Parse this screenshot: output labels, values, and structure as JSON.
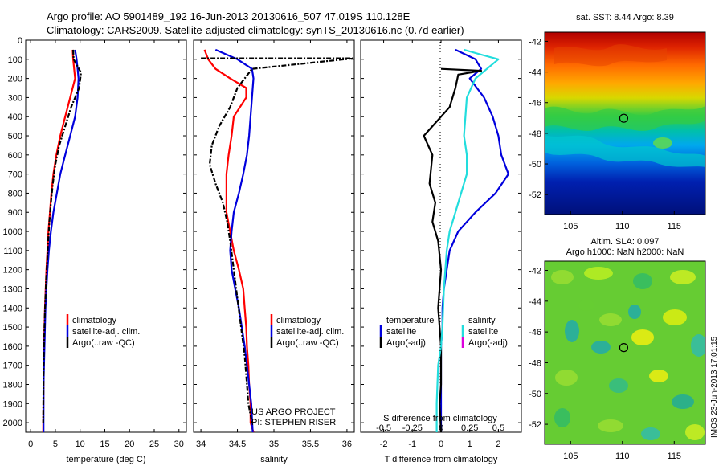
{
  "header": {
    "line1": "Argo profile: AO 5901489_192 16-Jun-2013 20130616_507 47.019S 110.128E",
    "line2": "Climatology: CARS2009. Satellite-adjusted climatology: synTS_20130616.nc (0.7d earlier)"
  },
  "colors": {
    "climatology": "#ff0000",
    "satellite": "#0000dd",
    "argo": "#000000",
    "satellite_s": "#22dddd",
    "argo_adj_s": "#dd00dd"
  },
  "chart_data": [
    {
      "id": "temperature",
      "type": "line",
      "xlabel": "temperature (deg C)",
      "ylabel": "",
      "xlim": [
        -1,
        31.5
      ],
      "ylim": [
        2050,
        0
      ],
      "xticks": [
        "0",
        "5",
        "10",
        "15",
        "20",
        "25",
        "30"
      ],
      "xtick_values": [
        0,
        5,
        10,
        15,
        20,
        25,
        30
      ],
      "yticks": [
        "0",
        "100",
        "200",
        "300",
        "400",
        "500",
        "600",
        "700",
        "800",
        "900",
        "1000",
        "1100",
        "1200",
        "1300",
        "1400",
        "1500",
        "1600",
        "1700",
        "1800",
        "1900",
        "2000"
      ],
      "ytick_values": [
        0,
        100,
        200,
        300,
        400,
        500,
        600,
        700,
        800,
        900,
        1000,
        1100,
        1200,
        1300,
        1400,
        1500,
        1600,
        1700,
        1800,
        1900,
        2000
      ],
      "legend": [
        "climatology",
        "satellite-adj. clim.",
        "Argo(..raw -QC)"
      ],
      "series": [
        {
          "name": "climatology",
          "color_key": "climatology",
          "x": [
            8.5,
            8.6,
            8.8,
            9.0,
            8.0,
            7.0,
            6.0,
            5.2,
            4.6,
            4.2,
            3.9,
            3.6,
            3.4,
            3.2,
            3.05,
            2.9,
            2.8,
            2.7,
            2.65,
            2.6,
            2.55
          ],
          "y": [
            50,
            100,
            150,
            200,
            300,
            400,
            500,
            600,
            700,
            800,
            900,
            1000,
            1100,
            1200,
            1300,
            1400,
            1500,
            1600,
            1700,
            1800,
            2050
          ]
        },
        {
          "name": "satellite-adj. clim.",
          "color_key": "satellite",
          "x": [
            9.0,
            9.3,
            9.5,
            9.7,
            9.5,
            9.0,
            8.0,
            7.0,
            6.0,
            5.3,
            4.6,
            4.1,
            3.7,
            3.4,
            3.2,
            3.0,
            2.9,
            2.8,
            2.7,
            2.6,
            2.6
          ],
          "y": [
            50,
            100,
            150,
            200,
            300,
            400,
            500,
            600,
            700,
            800,
            900,
            1000,
            1100,
            1200,
            1300,
            1400,
            1500,
            1600,
            1700,
            1800,
            2050
          ]
        },
        {
          "name": "Argo(..raw -QC)",
          "color_key": "argo",
          "x": [
            8.6,
            8.7,
            10.2,
            9.8,
            8.2,
            7.0,
            5.8,
            5.0,
            4.5,
            4.1,
            3.8,
            3.55,
            3.35,
            3.15,
            3.0,
            2.85,
            2.75,
            2.65,
            2.6,
            2.55
          ],
          "y": [
            50,
            100,
            170,
            250,
            350,
            450,
            550,
            650,
            750,
            850,
            950,
            1050,
            1150,
            1250,
            1350,
            1450,
            1550,
            1650,
            1750,
            2000
          ]
        }
      ]
    },
    {
      "id": "salinity",
      "type": "line",
      "xlabel": "salinity",
      "xlim": [
        33.9,
        36.1
      ],
      "ylim": [
        2050,
        0
      ],
      "xticks": [
        "34",
        "34.5",
        "35",
        "35.5",
        "36"
      ],
      "xtick_values": [
        34,
        34.5,
        35,
        35.5,
        36
      ],
      "legend": [
        "climatology",
        "satellite-adj. clim.",
        "Argo(..raw -QC)"
      ],
      "annotations": [
        "US ARGO PROJECT",
        "PI: STEPHEN RISER"
      ],
      "series": [
        {
          "name": "climatology",
          "color_key": "climatology",
          "x": [
            34.05,
            34.1,
            34.2,
            34.4,
            34.62,
            34.62,
            34.45,
            34.42,
            34.38,
            34.35,
            34.35,
            34.45,
            34.52,
            34.58,
            34.6,
            34.62,
            34.63,
            34.65,
            34.66,
            34.68,
            34.68,
            34.72
          ],
          "y": [
            50,
            100,
            150,
            200,
            250,
            300,
            400,
            500,
            600,
            700,
            900,
            1100,
            1200,
            1300,
            1400,
            1500,
            1600,
            1700,
            1800,
            1900,
            2000,
            2050
          ]
        },
        {
          "name": "satellite-adj. clim.",
          "color_key": "satellite",
          "x": [
            34.2,
            34.5,
            34.7,
            34.72,
            34.7,
            34.68,
            34.66,
            34.63,
            34.58,
            34.52,
            34.45,
            34.42,
            34.4,
            34.42,
            34.47,
            34.52,
            34.56,
            34.6,
            34.63,
            34.66,
            34.69,
            34.71
          ],
          "y": [
            50,
            100,
            150,
            200,
            300,
            400,
            500,
            600,
            700,
            800,
            900,
            1000,
            1100,
            1200,
            1300,
            1400,
            1500,
            1600,
            1700,
            1800,
            1900,
            2050
          ]
        },
        {
          "name": "Argo(..raw -QC)",
          "color_key": "argo",
          "x": [
            34.0,
            36.1,
            34.7,
            34.5,
            34.4,
            34.25,
            34.15,
            34.12,
            34.2,
            34.3,
            34.36,
            34.4,
            34.45,
            34.5,
            34.55,
            34.6,
            34.62,
            34.65,
            34.7
          ],
          "y": [
            95,
            95,
            150,
            250,
            350,
            450,
            550,
            650,
            750,
            850,
            950,
            1050,
            1200,
            1350,
            1500,
            1650,
            1750,
            1900,
            2000
          ]
        }
      ]
    },
    {
      "id": "differences",
      "type": "line",
      "xlabel": "T difference from climatology",
      "xlabel_top": "S difference from climatology",
      "xlim": [
        -2.8,
        2.8
      ],
      "ylim": [
        2050,
        0
      ],
      "xticks": [
        "-2",
        "-1",
        "0",
        "1",
        "2"
      ],
      "xtick_values": [
        -2,
        -1,
        0,
        1,
        2
      ],
      "s_xticks": [
        "-0.5",
        "-0.25",
        "0",
        "0.25",
        "0.5"
      ],
      "s_xtick_values": [
        -2,
        -1,
        0,
        1,
        2
      ],
      "legend_temperature": [
        "temperature",
        "satellite",
        "Argo(-adj)"
      ],
      "legend_salinity": [
        "salinity",
        "satellite",
        "Argo(-adj)"
      ],
      "series": [
        {
          "name": "T satellite",
          "color_key": "satellite",
          "x": [
            0.5,
            1.2,
            1.4,
            1.0,
            1.5,
            1.8,
            2.0,
            2.1,
            2.35,
            1.9,
            1.2,
            0.6,
            0.3,
            0.2,
            0.1,
            0.05,
            0.05,
            0.0,
            0.0
          ],
          "y": [
            50,
            100,
            150,
            200,
            300,
            400,
            500,
            600,
            700,
            800,
            900,
            1000,
            1100,
            1200,
            1300,
            1400,
            1500,
            1600,
            2050
          ]
        },
        {
          "name": "T Argo(-adj)",
          "color_key": "argo",
          "x": [
            0.0,
            1.4,
            0.6,
            0.5,
            0.3,
            -0.3,
            -0.6,
            -0.3,
            -0.4,
            -0.2,
            -0.3,
            -0.1,
            0.0,
            -0.1,
            0.0,
            0.0,
            -0.05,
            0.0
          ],
          "y": [
            150,
            160,
            180,
            250,
            350,
            450,
            500,
            600,
            750,
            850,
            950,
            1050,
            1200,
            1400,
            1600,
            1800,
            1900,
            2050
          ]
        },
        {
          "name": "S satellite",
          "color_key": "satellite_s",
          "x": [
            0.8,
            1.5,
            2.0,
            1.6,
            1.2,
            0.9,
            0.8,
            0.9,
            0.9,
            0.7,
            0.5,
            0.3,
            0.2,
            0.1,
            0.05,
            0.0,
            -0.1,
            -0.15,
            -0.15
          ],
          "y": [
            50,
            80,
            100,
            150,
            200,
            300,
            500,
            600,
            700,
            800,
            900,
            1000,
            1100,
            1300,
            1500,
            1600,
            1700,
            1900,
            2050
          ]
        }
      ]
    },
    {
      "id": "sst_map",
      "type": "heatmap",
      "title": "sat. SST: 8.44  Argo: 8.39",
      "xlim": [
        102.5,
        118
      ],
      "ylim": [
        -53.3,
        -41.4
      ],
      "xticks": [
        "105",
        "110",
        "115"
      ],
      "xtick_values": [
        105,
        110,
        115
      ],
      "yticks": [
        "-42",
        "-44",
        "-46",
        "-48",
        "-50",
        "-52"
      ],
      "ytick_values": [
        -42,
        -44,
        -46,
        -48,
        -50,
        -52
      ],
      "marker": {
        "lon": 110.128,
        "lat": -47.019
      }
    },
    {
      "id": "sla_map",
      "type": "heatmap",
      "title": "Altim. SLA: 0.097",
      "subtitle": "Argo h1000: NaN  h2000: NaN",
      "side_label": "IMOS 23-Jun-2013 17:01:15",
      "xlim": [
        102.5,
        118
      ],
      "ylim": [
        -53.3,
        -41.4
      ],
      "xticks": [
        "105",
        "110",
        "115"
      ],
      "xtick_values": [
        105,
        110,
        115
      ],
      "yticks": [
        "-42",
        "-44",
        "-46",
        "-48",
        "-50",
        "-52"
      ],
      "ytick_values": [
        -42,
        -44,
        -46,
        -48,
        -50,
        -52
      ],
      "marker": {
        "lon": 110.128,
        "lat": -47.019
      }
    }
  ]
}
